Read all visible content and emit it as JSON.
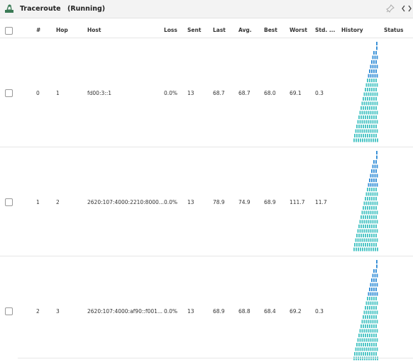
{
  "header": {
    "title": "Traceroute",
    "status": "(Running)"
  },
  "table": {
    "columns": [
      "#",
      "Hop",
      "Host",
      "Loss",
      "Sent",
      "Last",
      "Avg.",
      "Best",
      "Worst",
      "Std. ...",
      "History",
      "Status"
    ],
    "rows": [
      [
        "0",
        "1",
        "fd00:3::1",
        "0.0%",
        "13",
        "68.7",
        "68.7",
        "68.0",
        "69.1",
        "0.3"
      ],
      [
        "1",
        "2",
        "2620:107:4000:2210:8000...",
        "0.0%",
        "13",
        "78.9",
        "74.9",
        "68.9",
        "111.7",
        "11.7"
      ],
      [
        "2",
        "3",
        "2620:107:4000:af90::f001...",
        "0.0%",
        "13",
        "68.9",
        "68.8",
        "68.4",
        "69.2",
        "0.3"
      ]
    ]
  }
}
